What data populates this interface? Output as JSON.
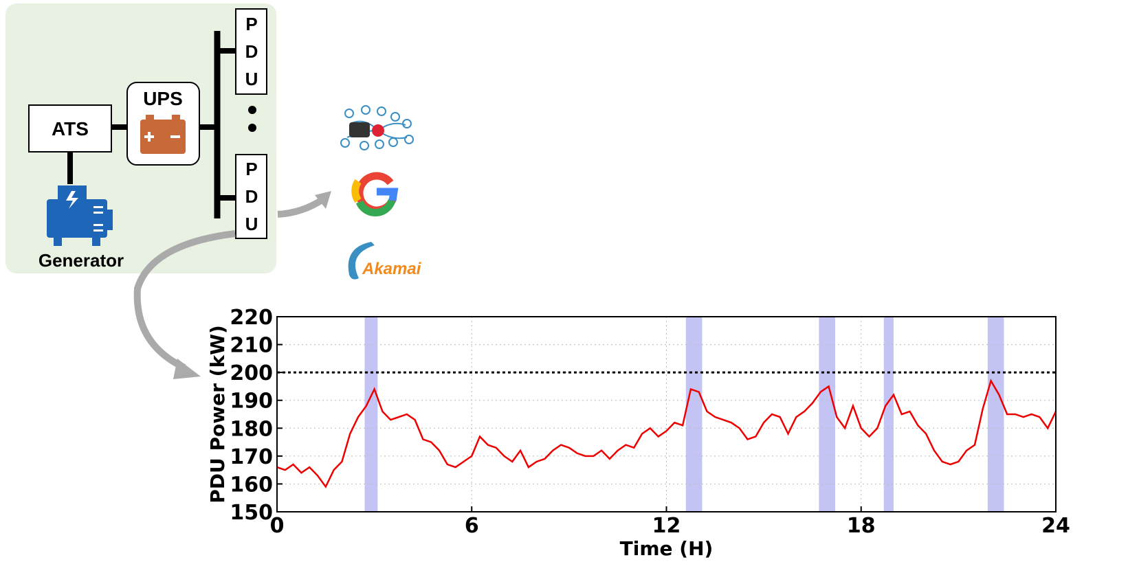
{
  "diagram": {
    "ats": "ATS",
    "ups": "UPS",
    "pdu_top": "PDU",
    "pdu_bottom": "PDU",
    "generator": "Generator",
    "akamai": "Akamai"
  },
  "chart_data": {
    "type": "line",
    "x_label": "Time (H)",
    "y_label": "PDU Power (kW)",
    "x": [
      0,
      0.25,
      0.5,
      0.75,
      1,
      1.25,
      1.5,
      1.75,
      2,
      2.25,
      2.5,
      2.75,
      3,
      3.25,
      3.5,
      3.75,
      4,
      4.25,
      4.5,
      4.75,
      5,
      5.25,
      5.5,
      5.75,
      6,
      6.25,
      6.5,
      6.75,
      7,
      7.25,
      7.5,
      7.75,
      8,
      8.25,
      8.5,
      8.75,
      9,
      9.25,
      9.5,
      9.75,
      10,
      10.25,
      10.5,
      10.75,
      11,
      11.25,
      11.5,
      11.75,
      12,
      12.25,
      12.5,
      12.75,
      13,
      13.25,
      13.5,
      13.75,
      14,
      14.25,
      14.5,
      14.75,
      15,
      15.25,
      15.5,
      15.75,
      16,
      16.25,
      16.5,
      16.75,
      17,
      17.25,
      17.5,
      17.75,
      18,
      18.25,
      18.5,
      18.75,
      19,
      19.25,
      19.5,
      19.75,
      20,
      20.25,
      20.5,
      20.75,
      21,
      21.25,
      21.5,
      21.75,
      22,
      22.25,
      22.5,
      22.75,
      23,
      23.25,
      23.5,
      23.75,
      24
    ],
    "values": [
      166,
      165,
      167,
      164,
      166,
      163,
      159,
      165,
      168,
      178,
      184,
      188,
      194,
      186,
      183,
      184,
      185,
      183,
      176,
      175,
      172,
      167,
      166,
      168,
      170,
      177,
      174,
      173,
      170,
      168,
      172,
      166,
      168,
      169,
      172,
      174,
      173,
      171,
      170,
      170,
      172,
      169,
      172,
      174,
      173,
      178,
      180,
      177,
      179,
      182,
      181,
      194,
      193,
      186,
      184,
      183,
      182,
      180,
      176,
      177,
      182,
      185,
      184,
      178,
      184,
      186,
      189,
      193,
      195,
      184,
      180,
      188,
      180,
      177,
      180,
      188,
      192,
      185,
      186,
      181,
      178,
      172,
      168,
      167,
      168,
      172,
      174,
      187,
      197,
      192,
      185,
      185,
      184,
      185,
      184,
      180,
      186
    ],
    "color": "#ee0000",
    "highlights": [
      [
        2.7,
        3.1
      ],
      [
        12.6,
        13.1
      ],
      [
        16.7,
        17.2
      ],
      [
        18.7,
        19.0
      ],
      [
        21.9,
        22.4
      ]
    ],
    "highlight_color": "#c4c4f4",
    "threshold": 200,
    "xlim": [
      0,
      24
    ],
    "xticks": [
      0,
      6,
      12,
      18,
      24
    ],
    "ylim": [
      150,
      220
    ],
    "yticks": [
      150,
      160,
      170,
      180,
      190,
      200,
      210,
      220
    ],
    "grid": true
  }
}
